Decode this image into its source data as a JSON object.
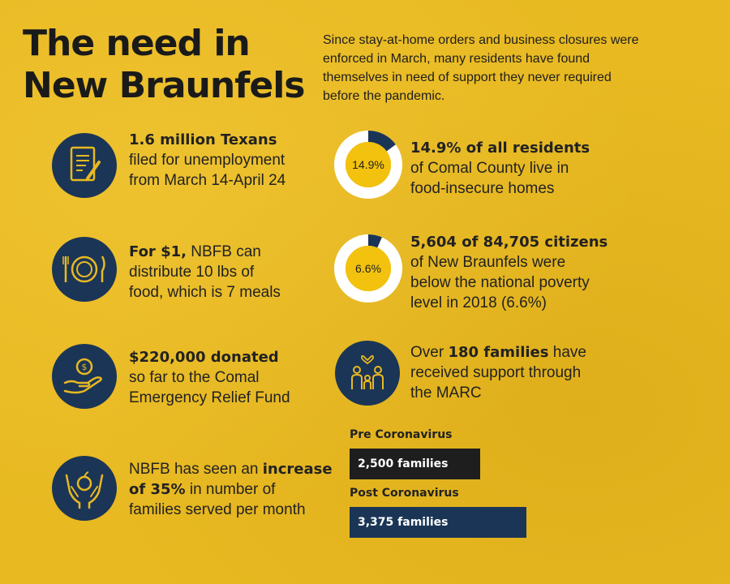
{
  "title": {
    "line1": "The need in",
    "line2": "New Braunfels"
  },
  "intro": "Since stay-at-home orders and business closures were enforced in March, many residents have found themselves in need of support they never required before the pandemic.",
  "items": {
    "unemployment": {
      "bold": "1.6 million Texans",
      "rest1": "filed for unemployment",
      "rest2": "from March 14-April 24",
      "icon": "document-pen-icon"
    },
    "meals": {
      "bold": "For $1,",
      "rest1": " NBFB can",
      "rest2": "distribute 10 lbs of",
      "rest3": "food, which is 7 meals",
      "icon": "plate-fork-knife-icon"
    },
    "donated": {
      "bold": "$220,000 donated",
      "rest1": "so far to the Comal",
      "rest2": "Emergency Relief Fund",
      "icon": "hand-coin-icon"
    },
    "increase": {
      "pre": "NBFB has seen an ",
      "bold1": "increase",
      "bold2": "of 35%",
      "rest1": " in number of",
      "rest2": "families served per month",
      "icon": "hands-apple-icon"
    },
    "food_insecure": {
      "bold": "14.9% of all residents",
      "rest1": "of Comal County live in",
      "rest2": "food-insecure homes",
      "donut_label": "14.9%",
      "percent": 14.9
    },
    "poverty": {
      "bold": "5,604 of 84,705 citizens",
      "rest1": "of New Braunfels were",
      "rest2": "below the national poverty",
      "rest3": "level in 2018 (6.6%)",
      "donut_label": "6.6%",
      "percent": 6.6
    },
    "families": {
      "pre": "Over ",
      "bold": "180 families",
      "rest1": " have",
      "rest2": "received support through",
      "rest3": "the MARC",
      "icon": "family-heart-icon"
    }
  },
  "bars": {
    "pre": {
      "label": "Pre Coronavirus",
      "value_text": "2,500 families",
      "value": 2500,
      "color": "#1e1e1e"
    },
    "post": {
      "label": "Post Coronavirus",
      "value_text": "3,375 families",
      "value": 3375,
      "color": "#1b3556"
    }
  },
  "colors": {
    "background": "#e8b921",
    "navy": "#1b3556",
    "donut_track": "#ffffff",
    "donut_inner": "#f2c20e"
  }
}
